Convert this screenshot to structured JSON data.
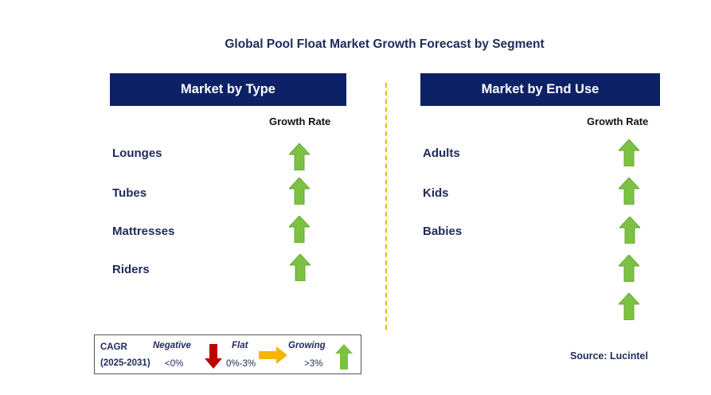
{
  "title": "Global Pool Float Market Growth Forecast by Segment",
  "left_panel": {
    "header": "Market by Type",
    "growth_rate_label": "Growth Rate",
    "rows": [
      {
        "label": "Lounges",
        "trend": "growing"
      },
      {
        "label": "Tubes",
        "trend": "growing"
      },
      {
        "label": "Mattresses",
        "trend": "growing"
      },
      {
        "label": "Riders",
        "trend": "growing"
      }
    ]
  },
  "right_panel": {
    "header": "Market by End Use",
    "growth_rate_label": "Growth Rate",
    "rows": [
      {
        "label": "Adults",
        "trend": "growing"
      },
      {
        "label": "Kids",
        "trend": "growing"
      },
      {
        "label": "Babies",
        "trend": "growing"
      },
      {
        "label": "",
        "trend": "growing"
      },
      {
        "label": "",
        "trend": "growing"
      }
    ]
  },
  "legend": {
    "cagr_label": "CAGR",
    "period": "(2025-2031)",
    "negative": {
      "label": "Negative",
      "range": "<0%",
      "icon": "down-arrow-icon",
      "color": "#c00000"
    },
    "flat": {
      "label": "Flat",
      "range": "0%-3%",
      "icon": "right-arrow-icon",
      "color": "#f7b500"
    },
    "growing": {
      "label": "Growing",
      "range": ">3%",
      "icon": "up-arrow-icon",
      "color": "#7dc142"
    }
  },
  "source": "Source: Lucintel",
  "colors": {
    "header_bg": "#0d2266",
    "text": "#1f2a5c",
    "divider": "#f2b31a",
    "growing": "#7dc142"
  }
}
